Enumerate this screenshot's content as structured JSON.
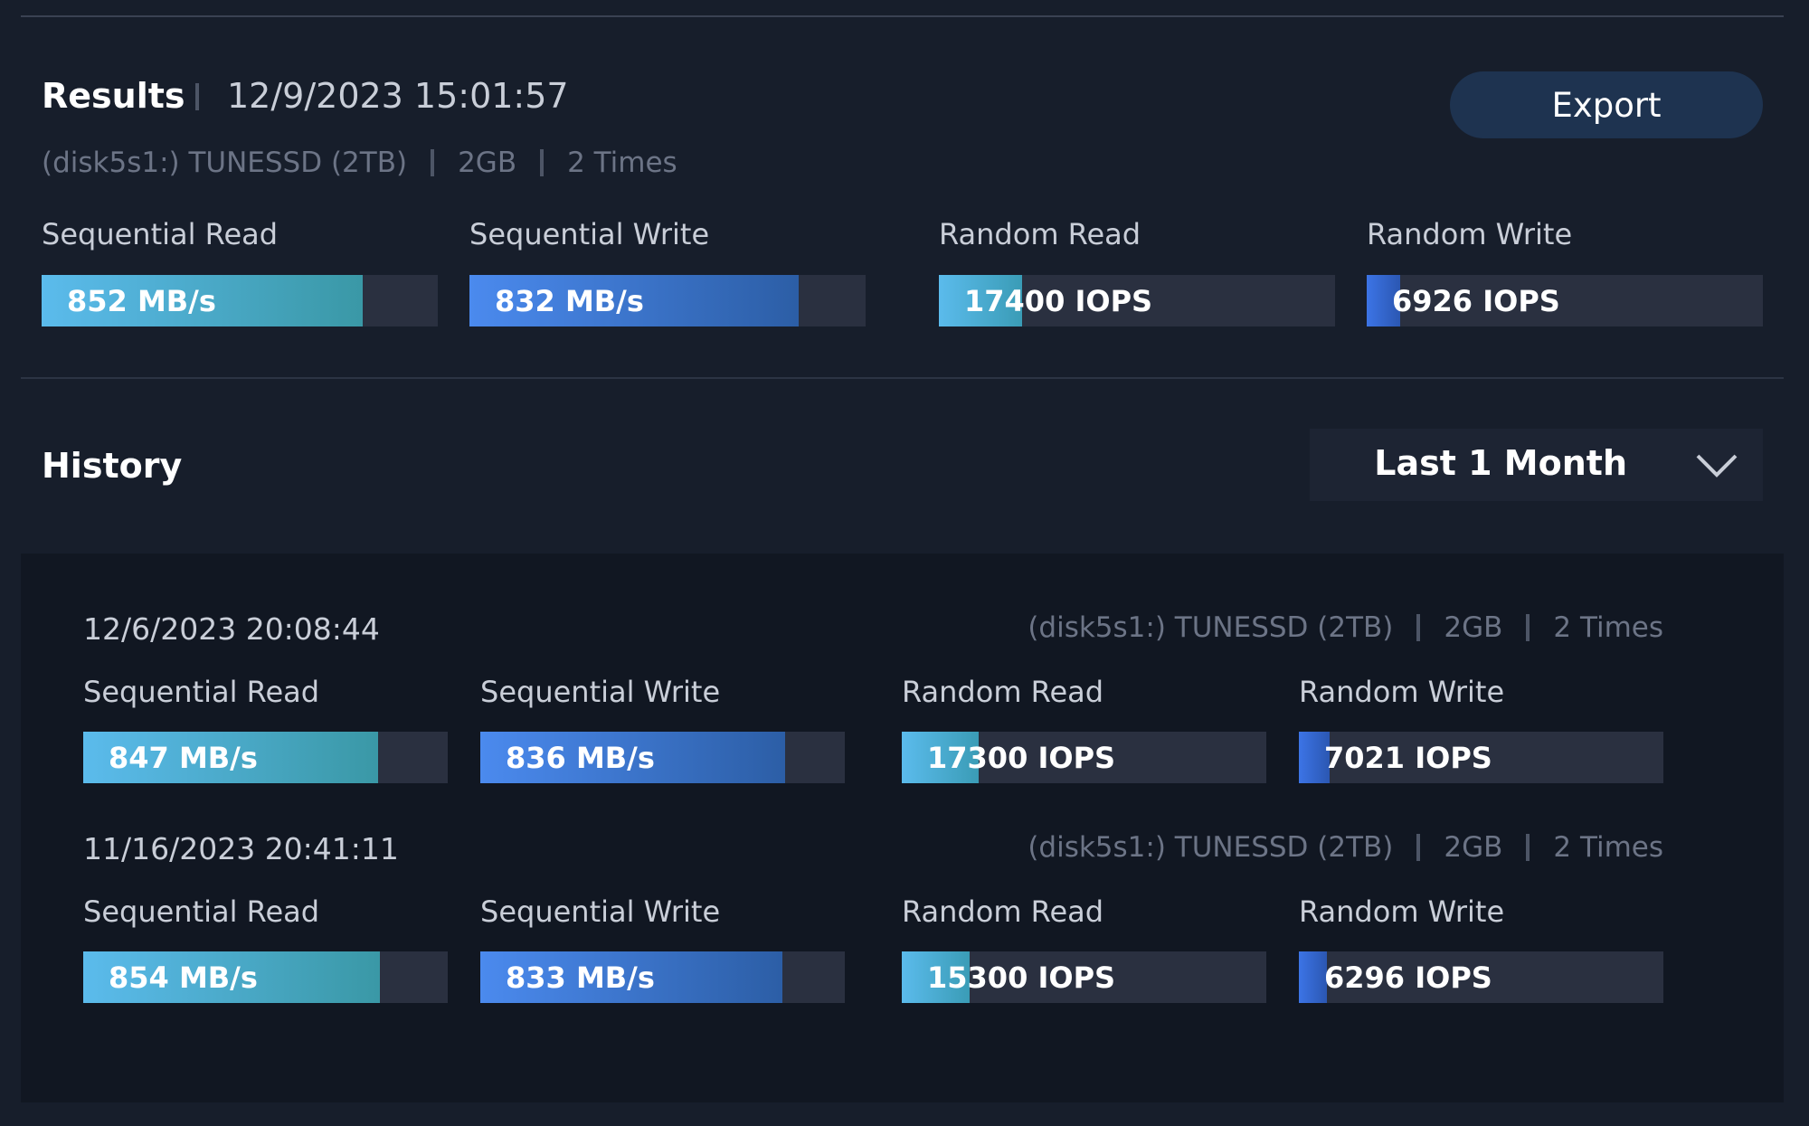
{
  "results": {
    "title": "Results",
    "timestamp": "12/9/2023 15:01:57",
    "drive": "(disk5s1:) TUNESSD (2TB)",
    "size": "2GB",
    "runs": "2 Times",
    "export": "Export",
    "metrics": [
      {
        "label": "Sequential Read",
        "value": "852 MB/s"
      },
      {
        "label": "Sequential Write",
        "value": "832 MB/s"
      },
      {
        "label": "Random Read",
        "value": "17400 IOPS"
      },
      {
        "label": "Random Write",
        "value": "6926 IOPS"
      }
    ]
  },
  "history": {
    "title": "History",
    "range": "Last 1 Month",
    "entries": [
      {
        "timestamp": "12/6/2023 20:08:44",
        "drive": "(disk5s1:) TUNESSD (2TB)",
        "size": "2GB",
        "runs": "2 Times",
        "metrics": [
          {
            "label": "Sequential Read",
            "value": "847 MB/s"
          },
          {
            "label": "Sequential Write",
            "value": "836 MB/s"
          },
          {
            "label": "Random Read",
            "value": "17300 IOPS"
          },
          {
            "label": "Random Write",
            "value": "7021 IOPS"
          }
        ]
      },
      {
        "timestamp": "11/16/2023 20:41:11",
        "drive": "(disk5s1:) TUNESSD (2TB)",
        "size": "2GB",
        "runs": "2 Times",
        "metrics": [
          {
            "label": "Sequential Read",
            "value": "854 MB/s"
          },
          {
            "label": "Sequential Write",
            "value": "833 MB/s"
          },
          {
            "label": "Random Read",
            "value": "15300 IOPS"
          },
          {
            "label": "Random Write",
            "value": "6296 IOPS"
          }
        ]
      }
    ]
  }
}
